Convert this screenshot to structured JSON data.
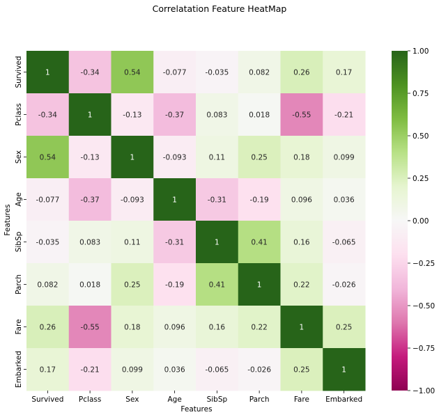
{
  "chart_data": {
    "type": "heatmap",
    "title": "Correlatation Feature HeatMap",
    "xlabel": "Features",
    "ylabel": "Features",
    "x_labels": [
      "Survived",
      "Pclass",
      "Sex",
      "Age",
      "SibSp",
      "Parch",
      "Fare",
      "Embarked"
    ],
    "y_labels": [
      "Survived",
      "Pclass",
      "Sex",
      "Age",
      "SibSp",
      "Parch",
      "Fare",
      "Embarked"
    ],
    "values": [
      [
        1,
        -0.34,
        0.54,
        -0.077,
        -0.035,
        0.082,
        0.26,
        0.17
      ],
      [
        -0.34,
        1,
        -0.13,
        -0.37,
        0.083,
        0.018,
        -0.55,
        -0.21
      ],
      [
        0.54,
        -0.13,
        1,
        -0.093,
        0.11,
        0.25,
        0.18,
        0.099
      ],
      [
        -0.077,
        -0.37,
        -0.093,
        1,
        -0.31,
        -0.19,
        0.096,
        0.036
      ],
      [
        -0.035,
        0.083,
        0.11,
        -0.31,
        1,
        0.41,
        0.16,
        -0.065
      ],
      [
        0.082,
        0.018,
        0.25,
        -0.19,
        0.41,
        1,
        0.22,
        -0.026
      ],
      [
        0.26,
        -0.55,
        0.18,
        0.096,
        0.16,
        0.22,
        1,
        0.25
      ],
      [
        0.17,
        -0.21,
        0.099,
        0.036,
        -0.065,
        -0.026,
        0.25,
        1
      ]
    ],
    "colormap": "PiYG",
    "vmin": -1,
    "vmax": 1,
    "colorbar_ticks": [
      "1.00",
      "0.75",
      "0.50",
      "0.25",
      "0.00",
      "−0.25",
      "−0.50",
      "−0.75",
      "−1.00"
    ],
    "colorbar_tick_values": [
      1,
      0.75,
      0.5,
      0.25,
      0,
      -0.25,
      -0.5,
      -0.75,
      -1
    ],
    "annotations": true,
    "grid": false,
    "legend": "colorbar-right"
  }
}
